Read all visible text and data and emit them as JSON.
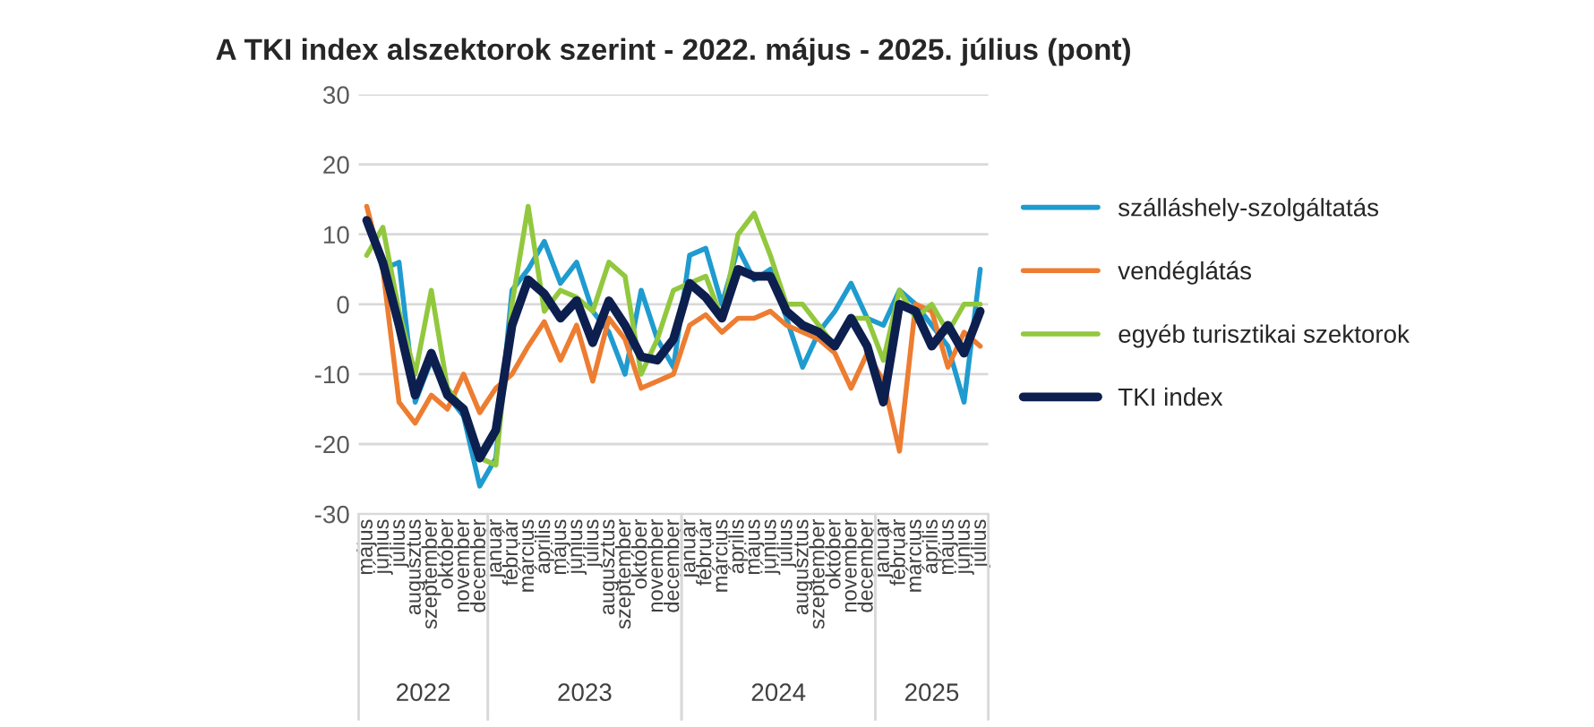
{
  "chart_data": {
    "type": "line",
    "title": "A TKI index alszektorok szerint - 2022. május - 2025. július (pont)",
    "x": [
      "2022-05",
      "2022-06",
      "2022-07",
      "2022-08",
      "2022-09",
      "2022-10",
      "2022-11",
      "2022-12",
      "2023-01",
      "2023-02",
      "2023-03",
      "2023-04",
      "2023-05",
      "2023-06",
      "2023-07",
      "2023-08",
      "2023-09",
      "2023-10",
      "2023-11",
      "2023-12",
      "2024-01",
      "2024-02",
      "2024-03",
      "2024-04",
      "2024-05",
      "2024-06",
      "2024-07",
      "2024-08",
      "2024-09",
      "2024-10",
      "2024-11",
      "2024-12",
      "2025-01",
      "2025-02",
      "2025-03",
      "2025-04",
      "2025-05",
      "2025-06",
      "2025-07"
    ],
    "xticks": [
      {
        "value": "2022-05",
        "label": "május"
      },
      {
        "value": "2022-06",
        "label": "június"
      },
      {
        "value": "2022-07",
        "label": "július"
      },
      {
        "value": "2022-08",
        "label": "augusztus"
      },
      {
        "value": "2022-09",
        "label": "szeptember"
      },
      {
        "value": "2022-10",
        "label": "október"
      },
      {
        "value": "2022-11",
        "label": "november"
      },
      {
        "value": "2022-12",
        "label": "december"
      },
      {
        "value": "2023-01",
        "label": "január"
      },
      {
        "value": "2023-02",
        "label": "február"
      },
      {
        "value": "2023-03",
        "label": "március"
      },
      {
        "value": "2023-04",
        "label": "április"
      },
      {
        "value": "2023-05",
        "label": "május"
      },
      {
        "value": "2023-06",
        "label": "június"
      },
      {
        "value": "2023-07",
        "label": "július"
      },
      {
        "value": "2023-08",
        "label": "augusztus"
      },
      {
        "value": "2023-09",
        "label": "szeptember"
      },
      {
        "value": "2023-10",
        "label": "október"
      },
      {
        "value": "2023-11",
        "label": "november"
      },
      {
        "value": "2023-12",
        "label": "december"
      },
      {
        "value": "2024-01",
        "label": "január"
      },
      {
        "value": "2024-02",
        "label": "február"
      },
      {
        "value": "2024-03",
        "label": "március"
      },
      {
        "value": "2024-04",
        "label": "április"
      },
      {
        "value": "2024-05",
        "label": "május"
      },
      {
        "value": "2024-06",
        "label": "június"
      },
      {
        "value": "2024-07",
        "label": "július"
      },
      {
        "value": "2024-08",
        "label": "augusztus"
      },
      {
        "value": "2024-09",
        "label": "szeptember"
      },
      {
        "value": "2024-10",
        "label": "október"
      },
      {
        "value": "2024-11",
        "label": "november"
      },
      {
        "value": "2024-12",
        "label": "december"
      },
      {
        "value": "2025-01",
        "label": "január"
      },
      {
        "value": "2025-02",
        "label": "február"
      },
      {
        "value": "2025-03",
        "label": "március"
      },
      {
        "value": "2025-04",
        "label": "április"
      },
      {
        "value": "2025-05",
        "label": "május"
      },
      {
        "value": "2025-06",
        "label": "június"
      },
      {
        "value": "2025-07",
        "label": "július"
      }
    ],
    "series": [
      {
        "name": "szálláshely-szolgáltatás",
        "color": "#1f9bcf",
        "values": [
          12,
          5,
          6,
          -14,
          -8,
          -13,
          -16,
          -26,
          -22,
          2,
          5,
          9,
          3,
          6,
          -1,
          -4,
          -10,
          2,
          -5,
          -9,
          7,
          8,
          0,
          8,
          3.5,
          5,
          -2,
          -9,
          -4,
          -1,
          3,
          -2,
          -3,
          2,
          0,
          -3,
          -6,
          -14,
          5
        ]
      },
      {
        "name": "vendéglátás",
        "color": "#ed7d31",
        "values": [
          14,
          5,
          -14,
          -17,
          -13,
          -15,
          -10,
          -15.5,
          -12,
          -10,
          -6,
          -2.5,
          -8,
          -3,
          -11,
          -2,
          -5,
          -12,
          -11,
          -10,
          -3,
          -1.5,
          -4,
          -2,
          -2,
          -1,
          -3,
          -4,
          -5,
          -7,
          -12,
          -7,
          -11,
          -21,
          0,
          -1,
          -9,
          -4,
          -6
        ]
      },
      {
        "name": "egyéb turisztikai szektorok",
        "color": "#92c83e",
        "values": [
          7,
          11,
          -1,
          -10,
          2,
          -12,
          -15,
          -22,
          -23,
          0,
          14,
          -1,
          2,
          1,
          -1,
          6,
          4,
          -10,
          -5,
          2,
          3,
          4,
          -2,
          10,
          13,
          7,
          0,
          0,
          -3,
          -6,
          -2,
          -2,
          -8,
          2,
          -2,
          0,
          -4,
          0,
          0
        ]
      },
      {
        "name": "TKI index",
        "color": "#0d1f4f",
        "values": [
          12,
          6,
          -3,
          -13,
          -7,
          -13,
          -15,
          -22,
          -18,
          -3,
          3.5,
          1.5,
          -2,
          0.5,
          -5.5,
          0.5,
          -3,
          -7.5,
          -8,
          -5,
          3,
          1,
          -2,
          5,
          4,
          4,
          -1,
          -3,
          -4,
          -6,
          -2,
          -6,
          -14,
          0,
          -1,
          -6,
          -3,
          -7,
          -1
        ]
      }
    ],
    "xlim": [
      "2022-04-16",
      "2025-07-16"
    ],
    "ylim": [
      -30,
      30
    ],
    "yticks": [
      -30,
      -20,
      -10,
      0,
      10,
      20,
      30
    ],
    "grid": "y",
    "legend": "right",
    "annotations": [
      "2022",
      "2023",
      "2024",
      "2025"
    ]
  }
}
